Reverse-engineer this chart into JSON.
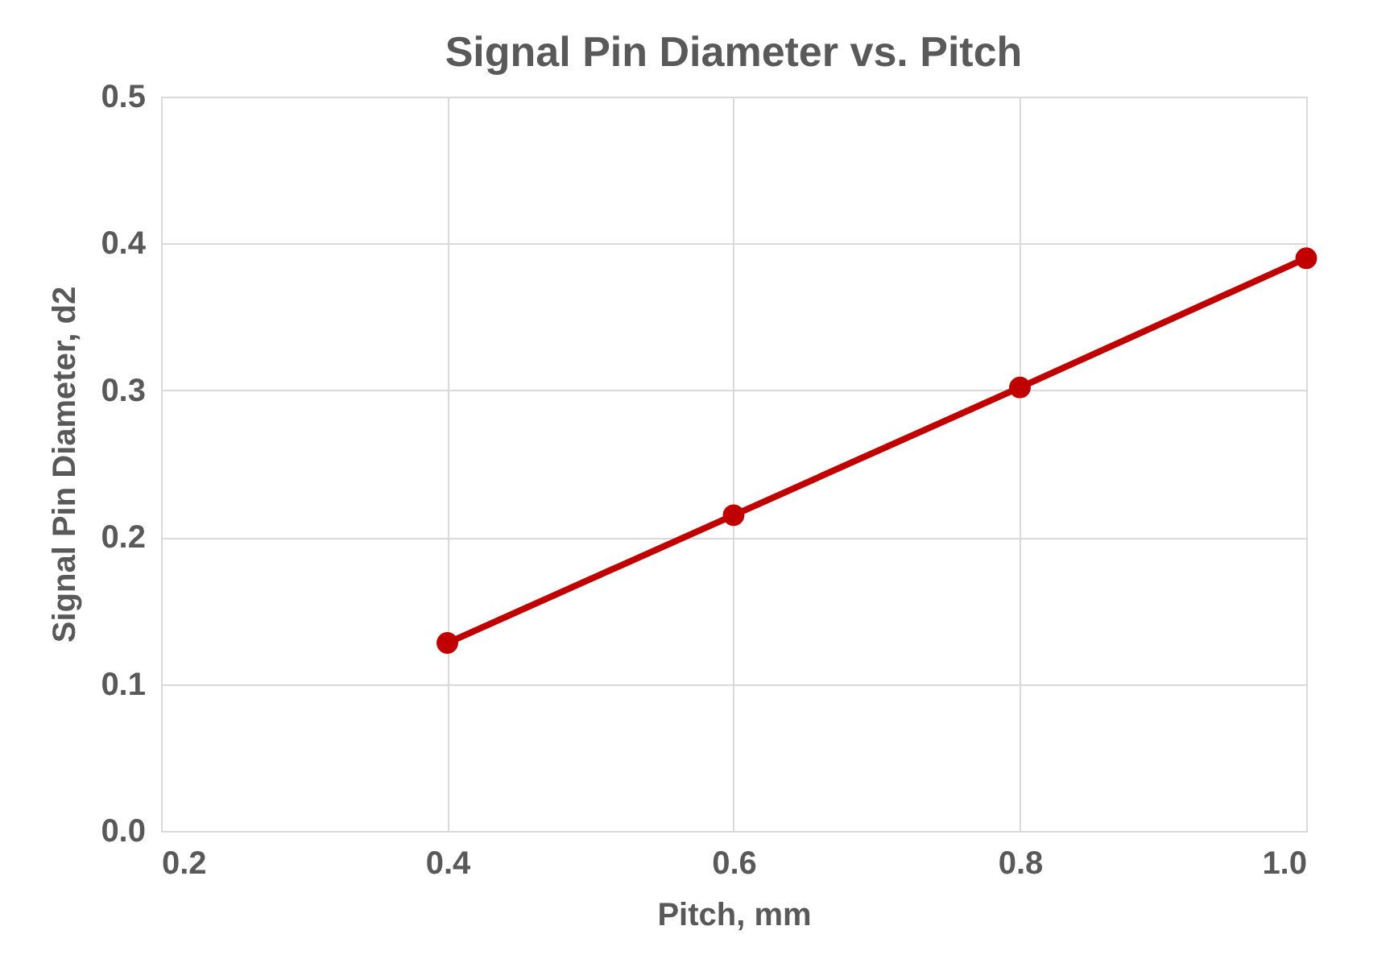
{
  "chart_data": {
    "type": "line",
    "title": "Signal Pin Diameter vs. Pitch",
    "xlabel": "Pitch, mm",
    "ylabel": "Signal Pin Diameter, d2",
    "x": [
      0.4,
      0.6,
      0.8,
      1.0
    ],
    "series": [
      {
        "color": "#c00000",
        "values": [
          0.128,
          0.215,
          0.302,
          0.39
        ]
      }
    ],
    "xlim": [
      0.2,
      1.0
    ],
    "xticks": [
      {
        "value": 0.2,
        "label": "0.2"
      },
      {
        "value": 0.4,
        "label": "0.4"
      },
      {
        "value": 0.6,
        "label": "0.6"
      },
      {
        "value": 0.8,
        "label": "0.8"
      },
      {
        "value": 1.0,
        "label": "1.0"
      }
    ],
    "ylim": [
      0.0,
      0.5
    ],
    "yticks": [
      {
        "value": 0.0,
        "label": "0.0"
      },
      {
        "value": 0.1,
        "label": "0.1"
      },
      {
        "value": 0.2,
        "label": "0.2"
      },
      {
        "value": 0.3,
        "label": "0.3"
      },
      {
        "value": 0.4,
        "label": "0.4"
      },
      {
        "value": 0.5,
        "label": "0.5"
      }
    ],
    "grid": true,
    "marker": "circle",
    "line_style": "solid"
  }
}
